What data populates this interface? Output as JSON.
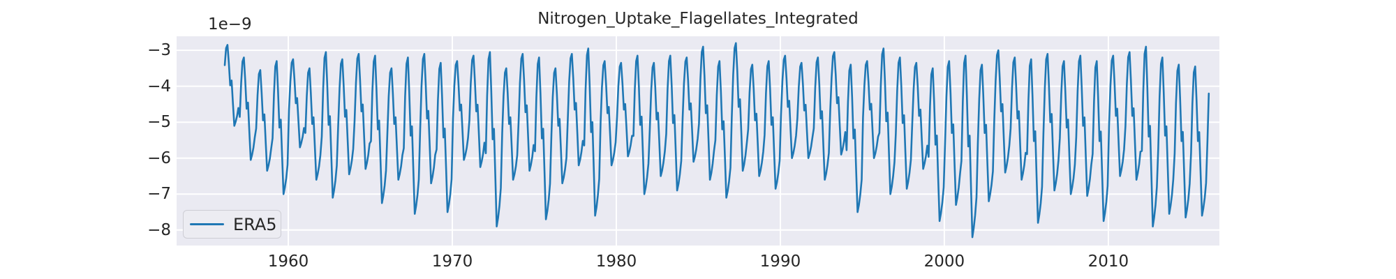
{
  "figure": {
    "background": "#ffffff"
  },
  "chart_data": {
    "type": "line",
    "title": "Nitrogen_Uptake_Flagellates_Integrated",
    "offset_text": "1e−9",
    "xlabel": "",
    "ylabel": "",
    "value_units": "1e-9",
    "grid": true,
    "legend_position": "lower left",
    "axes_bg_color": "#eaeaf2",
    "grid_color": "#ffffff",
    "text_color": "#262626",
    "xlim": [
      1953.19,
      2016.77
    ],
    "ylim": [
      -8.43,
      -2.61
    ],
    "x_ticks": [
      {
        "label": "1960",
        "value": 1960
      },
      {
        "label": "1970",
        "value": 1970
      },
      {
        "label": "1980",
        "value": 1980
      },
      {
        "label": "1990",
        "value": 1990
      },
      {
        "label": "2000",
        "value": 2000
      },
      {
        "label": "2010",
        "value": 2010
      }
    ],
    "y_ticks": [
      {
        "label": "−3",
        "value": -3
      },
      {
        "label": "−4",
        "value": -4
      },
      {
        "label": "−5",
        "value": -5
      },
      {
        "label": "−6",
        "value": -6
      },
      {
        "label": "−7",
        "value": -7
      },
      {
        "label": "−8",
        "value": -8
      }
    ],
    "series": [
      {
        "name": "ERA5",
        "color": "#1f77b4",
        "line_width": 2.6,
        "sampling": "monthly",
        "start": {
          "year": 1956,
          "month": 1
        },
        "end": {
          "year": 2016,
          "month": 1
        },
        "seasonal_shape": [
          0.42,
          0.75,
          0.96,
          1.0,
          0.78,
          0.5,
          0.56,
          0.28,
          0.0,
          0.05,
          0.12,
          0.22
        ],
        "annual_envelope": [
          {
            "year": 1956,
            "peak": -2.85,
            "trough": -5.1
          },
          {
            "year": 1957,
            "peak": -3.2,
            "trough": -6.05
          },
          {
            "year": 1958,
            "peak": -3.55,
            "trough": -6.35
          },
          {
            "year": 1959,
            "peak": -3.3,
            "trough": -7.0
          },
          {
            "year": 1960,
            "peak": -3.25,
            "trough": -5.7
          },
          {
            "year": 1961,
            "peak": -3.5,
            "trough": -6.6
          },
          {
            "year": 1962,
            "peak": -3.05,
            "trough": -7.1
          },
          {
            "year": 1963,
            "peak": -3.25,
            "trough": -6.45
          },
          {
            "year": 1964,
            "peak": -3.1,
            "trough": -6.3
          },
          {
            "year": 1965,
            "peak": -3.15,
            "trough": -7.25
          },
          {
            "year": 1966,
            "peak": -3.5,
            "trough": -6.6
          },
          {
            "year": 1967,
            "peak": -3.2,
            "trough": -7.55
          },
          {
            "year": 1968,
            "peak": -3.1,
            "trough": -6.7
          },
          {
            "year": 1969,
            "peak": -3.35,
            "trough": -7.5
          },
          {
            "year": 1970,
            "peak": -3.3,
            "trough": -6.05
          },
          {
            "year": 1971,
            "peak": -3.15,
            "trough": -6.25
          },
          {
            "year": 1972,
            "peak": -3.05,
            "trough": -7.9
          },
          {
            "year": 1973,
            "peak": -3.5,
            "trough": -6.6
          },
          {
            "year": 1974,
            "peak": -3.1,
            "trough": -6.35
          },
          {
            "year": 1975,
            "peak": -3.2,
            "trough": -7.7
          },
          {
            "year": 1976,
            "peak": -3.5,
            "trough": -6.7
          },
          {
            "year": 1977,
            "peak": -3.1,
            "trough": -6.2
          },
          {
            "year": 1978,
            "peak": -2.95,
            "trough": -7.6
          },
          {
            "year": 1979,
            "peak": -3.3,
            "trough": -6.2
          },
          {
            "year": 1980,
            "peak": -3.35,
            "trough": -5.95
          },
          {
            "year": 1981,
            "peak": -3.15,
            "trough": -7.0
          },
          {
            "year": 1982,
            "peak": -3.35,
            "trough": -6.5
          },
          {
            "year": 1983,
            "peak": -3.15,
            "trough": -6.9
          },
          {
            "year": 1984,
            "peak": -3.2,
            "trough": -6.1
          },
          {
            "year": 1985,
            "peak": -2.9,
            "trough": -6.6
          },
          {
            "year": 1986,
            "peak": -3.3,
            "trough": -7.1
          },
          {
            "year": 1987,
            "peak": -2.8,
            "trough": -6.35
          },
          {
            "year": 1988,
            "peak": -3.4,
            "trough": -6.5
          },
          {
            "year": 1989,
            "peak": -3.3,
            "trough": -6.85
          },
          {
            "year": 1990,
            "peak": -3.15,
            "trough": -6.0
          },
          {
            "year": 1991,
            "peak": -3.35,
            "trough": -6.0
          },
          {
            "year": 1992,
            "peak": -3.2,
            "trough": -6.6
          },
          {
            "year": 1993,
            "peak": -3.05,
            "trough": -5.9
          },
          {
            "year": 1994,
            "peak": -3.4,
            "trough": -7.5
          },
          {
            "year": 1995,
            "peak": -3.3,
            "trough": -6.0
          },
          {
            "year": 1996,
            "peak": -2.95,
            "trough": -7.0
          },
          {
            "year": 1997,
            "peak": -3.2,
            "trough": -6.85
          },
          {
            "year": 1998,
            "peak": -3.35,
            "trough": -6.3
          },
          {
            "year": 1999,
            "peak": -3.5,
            "trough": -7.75
          },
          {
            "year": 2000,
            "peak": -3.3,
            "trough": -7.3
          },
          {
            "year": 2001,
            "peak": -3.15,
            "trough": -8.2
          },
          {
            "year": 2002,
            "peak": -3.4,
            "trough": -7.2
          },
          {
            "year": 2003,
            "peak": -3.0,
            "trough": -6.4
          },
          {
            "year": 2004,
            "peak": -3.2,
            "trough": -6.6
          },
          {
            "year": 2005,
            "peak": -3.25,
            "trough": -7.8
          },
          {
            "year": 2006,
            "peak": -3.1,
            "trough": -6.9
          },
          {
            "year": 2007,
            "peak": -3.3,
            "trough": -7.0
          },
          {
            "year": 2008,
            "peak": -3.15,
            "trough": -7.05
          },
          {
            "year": 2009,
            "peak": -3.3,
            "trough": -7.75
          },
          {
            "year": 2010,
            "peak": -3.15,
            "trough": -6.5
          },
          {
            "year": 2011,
            "peak": -3.05,
            "trough": -6.6
          },
          {
            "year": 2012,
            "peak": -2.9,
            "trough": -7.9
          },
          {
            "year": 2013,
            "peak": -3.2,
            "trough": -7.55
          },
          {
            "year": 2014,
            "peak": -3.4,
            "trough": -7.65
          },
          {
            "year": 2015,
            "peak": -3.45,
            "trough": -7.6
          },
          {
            "year": 2016,
            "peak": -3.2,
            "trough": -7.2
          }
        ]
      }
    ]
  },
  "legend": {
    "label": "ERA5"
  }
}
